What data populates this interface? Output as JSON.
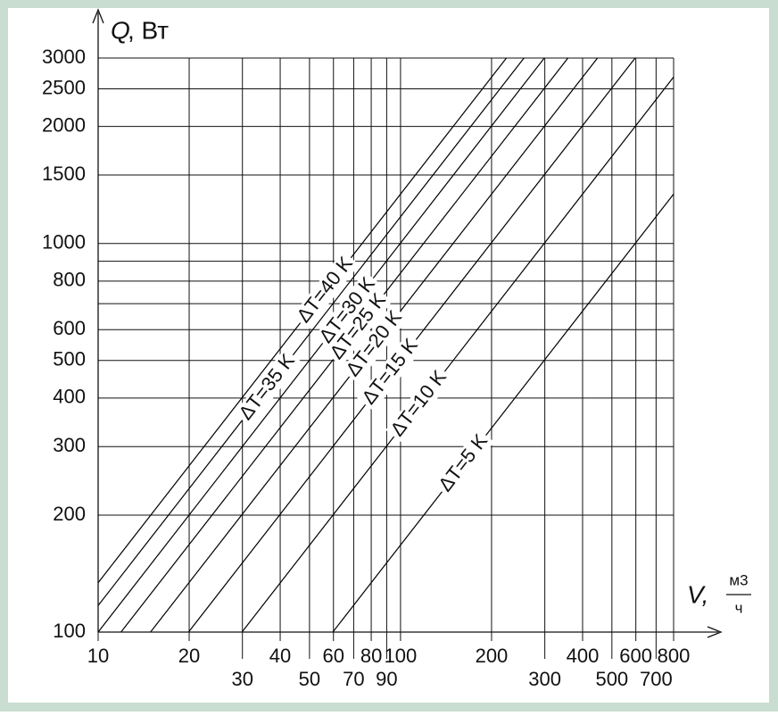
{
  "chart_data": {
    "type": "line",
    "y_label_symbol": "Q",
    "y_label_unit": ", Вт",
    "x_label_symbol": "V,",
    "x_label_unit_top": "м3",
    "x_label_unit_bottom": "ч",
    "log_x": true,
    "log_y": true,
    "grid": true,
    "xlim": [
      10,
      800
    ],
    "ylim": [
      100,
      3000
    ],
    "xticks": [
      10,
      20,
      30,
      40,
      50,
      60,
      70,
      80,
      90,
      100,
      200,
      300,
      400,
      500,
      600,
      700,
      800
    ],
    "yticks": [
      100,
      200,
      300,
      400,
      500,
      600,
      800,
      1000,
      1500,
      2000,
      2500,
      3000
    ],
    "yminor": [
      700,
      900
    ],
    "series": [
      {
        "name": "ΔT=40 K",
        "color": "#000000",
        "x": [
          10,
          224
        ],
        "values": [
          134,
          3000
        ]
      },
      {
        "name": "ΔT=35 K",
        "color": "#000000",
        "x": [
          10,
          256
        ],
        "values": [
          117,
          3000
        ]
      },
      {
        "name": "ΔT=30 K",
        "color": "#000000",
        "x": [
          10,
          299
        ],
        "values": [
          100,
          3000
        ]
      },
      {
        "name": "ΔT=25 K",
        "color": "#000000",
        "x": [
          11.9,
          358
        ],
        "values": [
          100,
          3000
        ]
      },
      {
        "name": "ΔT=20 K",
        "color": "#000000",
        "x": [
          14.9,
          448
        ],
        "values": [
          100,
          3000
        ]
      },
      {
        "name": "ΔT=15 K",
        "color": "#000000",
        "x": [
          19.9,
          597
        ],
        "values": [
          100,
          3000
        ]
      },
      {
        "name": "ΔT=10 K",
        "color": "#000000",
        "x": [
          29.9,
          800
        ],
        "values": [
          100,
          2680
        ]
      },
      {
        "name": "ΔT=5 K",
        "color": "#000000",
        "x": [
          59.7,
          800
        ],
        "values": [
          100,
          1340
        ]
      }
    ]
  }
}
